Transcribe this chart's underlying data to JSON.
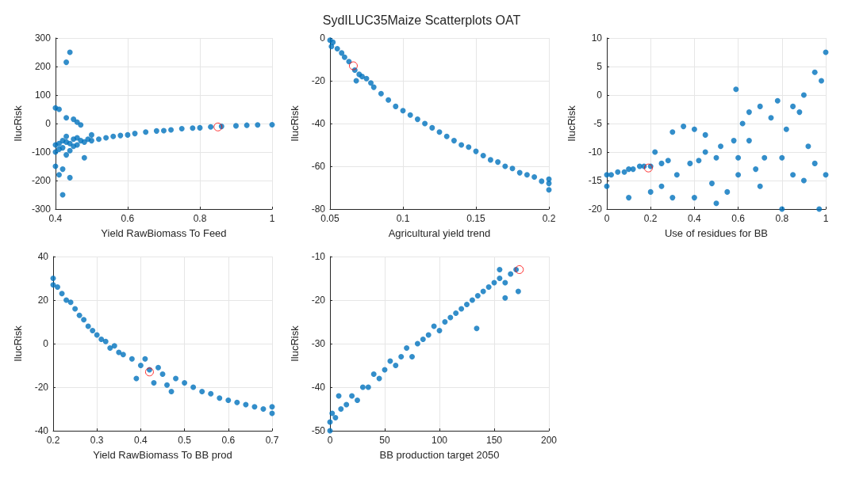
{
  "chart_data": [
    {
      "type": "scatter",
      "xlabel": "Yield RawBiomass To Feed",
      "ylabel": "IlucRisk",
      "xlim": [
        0.4,
        1
      ],
      "xticks": [
        0.4,
        0.6,
        0.8,
        1
      ],
      "ylim": [
        -300,
        300
      ],
      "yticks": [
        -300,
        -200,
        -100,
        0,
        100,
        200,
        300
      ],
      "grid": true,
      "marker": "circle",
      "series": [
        {
          "color": "#0072bd",
          "x": [
            0.4,
            0.4,
            0.41,
            0.41,
            0.42,
            0.42,
            0.43,
            0.43,
            0.43,
            0.44,
            0.44,
            0.45,
            0.45,
            0.46,
            0.46,
            0.47,
            0.48,
            0.49,
            0.5,
            0.5,
            0.52,
            0.54,
            0.56,
            0.58,
            0.6,
            0.62,
            0.65,
            0.68,
            0.7,
            0.72,
            0.75,
            0.78,
            0.8,
            0.83,
            0.86,
            0.9,
            0.93,
            0.96,
            1,
            0.4,
            0.41,
            0.43,
            0.44,
            0.42,
            0.41,
            0.44,
            0.4,
            0.42,
            0.45,
            0.47,
            0.48,
            0.43,
            0.46
          ],
          "values": [
            -75,
            -100,
            -70,
            -90,
            -60,
            -85,
            -65,
            -45,
            -110,
            -70,
            -95,
            -55,
            -80,
            -50,
            -75,
            -60,
            -65,
            -55,
            -60,
            -40,
            -55,
            -50,
            -45,
            -42,
            -40,
            -35,
            -30,
            -26,
            -25,
            -22,
            -18,
            -16,
            -15,
            -12,
            -10,
            -8,
            -6,
            -5,
            -4,
            55,
            50,
            215,
            250,
            -250,
            -180,
            -190,
            -150,
            -160,
            15,
            -5,
            -120,
            20,
            5
          ]
        },
        {
          "color": "#ff0000",
          "x": [
            0.85
          ],
          "values": [
            -12
          ]
        }
      ]
    },
    {
      "type": "scatter",
      "title": "SydILUC35Maize Scatterplots OAT",
      "xlabel": "Agricultural yield trend",
      "ylabel": "IlucRisk",
      "xlim": [
        0.05,
        0.2
      ],
      "xticks": [
        0.05,
        0.1,
        0.15,
        0.2
      ],
      "ylim": [
        -80,
        0
      ],
      "yticks": [
        -80,
        -60,
        -40,
        -20,
        0
      ],
      "grid": true,
      "marker": "circle",
      "series": [
        {
          "color": "#0072bd",
          "x": [
            0.05,
            0.051,
            0.052,
            0.055,
            0.058,
            0.06,
            0.063,
            0.067,
            0.068,
            0.07,
            0.072,
            0.075,
            0.078,
            0.08,
            0.085,
            0.09,
            0.095,
            0.1,
            0.105,
            0.11,
            0.115,
            0.12,
            0.125,
            0.13,
            0.135,
            0.14,
            0.145,
            0.15,
            0.155,
            0.16,
            0.165,
            0.17,
            0.175,
            0.18,
            0.185,
            0.19,
            0.195,
            0.2,
            0.2,
            0.2
          ],
          "values": [
            -1,
            -4,
            -2,
            -5,
            -7,
            -9,
            -11,
            -15,
            -20,
            -17,
            -18,
            -19,
            -21,
            -23,
            -26,
            -29,
            -32,
            -34,
            -36,
            -38,
            -40,
            -42,
            -44,
            -46,
            -48,
            -50,
            -51,
            -53,
            -55,
            -57,
            -58,
            -60,
            -61,
            -63,
            -64,
            -65,
            -67,
            -66,
            -68,
            -71
          ]
        },
        {
          "color": "#ff0000",
          "x": [
            0.066
          ],
          "values": [
            -13
          ]
        }
      ]
    },
    {
      "type": "scatter",
      "xlabel": "Use of residues for BB",
      "ylabel": "IlucRisk",
      "xlim": [
        0,
        1
      ],
      "xticks": [
        0,
        0.2,
        0.4,
        0.6,
        0.8,
        1
      ],
      "ylim": [
        -20,
        10
      ],
      "yticks": [
        -20,
        -15,
        -10,
        -5,
        0,
        5,
        10
      ],
      "grid": true,
      "marker": "circle",
      "series": [
        {
          "color": "#0072bd",
          "x": [
            0,
            0,
            0.02,
            0.05,
            0.08,
            0.1,
            0.12,
            0.15,
            0.17,
            0.2,
            0.22,
            0.25,
            0.28,
            0.3,
            0.32,
            0.35,
            0.38,
            0.4,
            0.42,
            0.45,
            0.48,
            0.5,
            0.52,
            0.55,
            0.58,
            0.59,
            0.6,
            0.62,
            0.65,
            0.68,
            0.7,
            0.72,
            0.75,
            0.78,
            0.8,
            0.82,
            0.85,
            0.88,
            0.9,
            0.92,
            0.95,
            0.97,
            0.98,
            1,
            1,
            0.1,
            0.2,
            0.3,
            0.4,
            0.5,
            0.6,
            0.7,
            0.8,
            0.9,
            0.25,
            0.45,
            0.65,
            0.85,
            0.95
          ],
          "values": [
            -14,
            -16,
            -14,
            -13.5,
            -13.5,
            -13,
            -13,
            -12.5,
            -12.5,
            -12.5,
            -10,
            -12,
            -11.5,
            -6.5,
            -14,
            -5.5,
            -12,
            -6,
            -11.5,
            -7,
            -15.5,
            -11,
            -9,
            -17,
            -8,
            1,
            -11,
            -5,
            -3,
            -13,
            -2,
            -11,
            -4,
            -1,
            -11,
            -6,
            -14,
            -3,
            0,
            -9,
            -12,
            -20,
            2.5,
            7.5,
            -14,
            -18,
            -17,
            -18,
            -18,
            -19,
            -14,
            -16,
            -20,
            -15,
            -16,
            -10,
            -8,
            -2,
            4
          ]
        },
        {
          "color": "#ff0000",
          "x": [
            0.19
          ],
          "values": [
            -12.8
          ]
        }
      ]
    },
    {
      "type": "scatter",
      "xlabel": "Yield RawBiomass To BB prod",
      "ylabel": "IlucRisk",
      "xlim": [
        0.2,
        0.7
      ],
      "xticks": [
        0.2,
        0.3,
        0.4,
        0.5,
        0.6,
        0.7
      ],
      "ylim": [
        -40,
        40
      ],
      "yticks": [
        -40,
        -20,
        0,
        20,
        40
      ],
      "grid": true,
      "marker": "circle",
      "series": [
        {
          "color": "#0072bd",
          "x": [
            0.2,
            0.2,
            0.21,
            0.22,
            0.23,
            0.24,
            0.25,
            0.26,
            0.27,
            0.28,
            0.29,
            0.3,
            0.31,
            0.32,
            0.33,
            0.34,
            0.35,
            0.36,
            0.38,
            0.39,
            0.4,
            0.41,
            0.42,
            0.43,
            0.44,
            0.45,
            0.46,
            0.47,
            0.48,
            0.5,
            0.52,
            0.54,
            0.56,
            0.58,
            0.6,
            0.62,
            0.64,
            0.66,
            0.68,
            0.7,
            0.7
          ],
          "values": [
            30,
            27,
            26,
            23,
            20,
            19,
            16,
            13,
            11,
            8,
            6,
            4,
            2,
            1,
            -2,
            -1,
            -4,
            -5,
            -7,
            -16,
            -10,
            -7,
            -12,
            -18,
            -11,
            -14,
            -19,
            -22,
            -16,
            -18,
            -20,
            -22,
            -23,
            -25,
            -26,
            -27,
            -28,
            -29,
            -30,
            -29,
            -32
          ]
        },
        {
          "color": "#ff0000",
          "x": [
            0.42
          ],
          "values": [
            -13
          ]
        }
      ]
    },
    {
      "type": "scatter",
      "xlabel": "BB production target 2050",
      "ylabel": "IlucRisk",
      "xlim": [
        0,
        200
      ],
      "xticks": [
        0,
        50,
        100,
        150,
        200
      ],
      "ylim": [
        -50,
        -10
      ],
      "yticks": [
        -50,
        -40,
        -30,
        -20,
        -10
      ],
      "grid": true,
      "marker": "circle",
      "series": [
        {
          "color": "#0072bd",
          "x": [
            0,
            0,
            2,
            5,
            8,
            10,
            15,
            20,
            25,
            30,
            35,
            40,
            45,
            50,
            55,
            60,
            65,
            70,
            75,
            80,
            85,
            90,
            95,
            100,
            105,
            110,
            115,
            120,
            125,
            130,
            134,
            135,
            140,
            145,
            150,
            155,
            160,
            165,
            170,
            172,
            160,
            155
          ],
          "values": [
            -48,
            -50,
            -46,
            -47,
            -42,
            -45,
            -44,
            -42,
            -43,
            -40,
            -40,
            -37,
            -38,
            -36,
            -34,
            -35,
            -33,
            -31,
            -33,
            -30,
            -29,
            -28,
            -26,
            -27,
            -25,
            -24,
            -23,
            -22,
            -21,
            -20,
            -26.5,
            -19,
            -18,
            -17,
            -16,
            -15,
            -16,
            -14,
            -13,
            -18,
            -19.5,
            -13
          ]
        },
        {
          "color": "#ff0000",
          "x": [
            173
          ],
          "values": [
            -13
          ]
        }
      ]
    }
  ]
}
